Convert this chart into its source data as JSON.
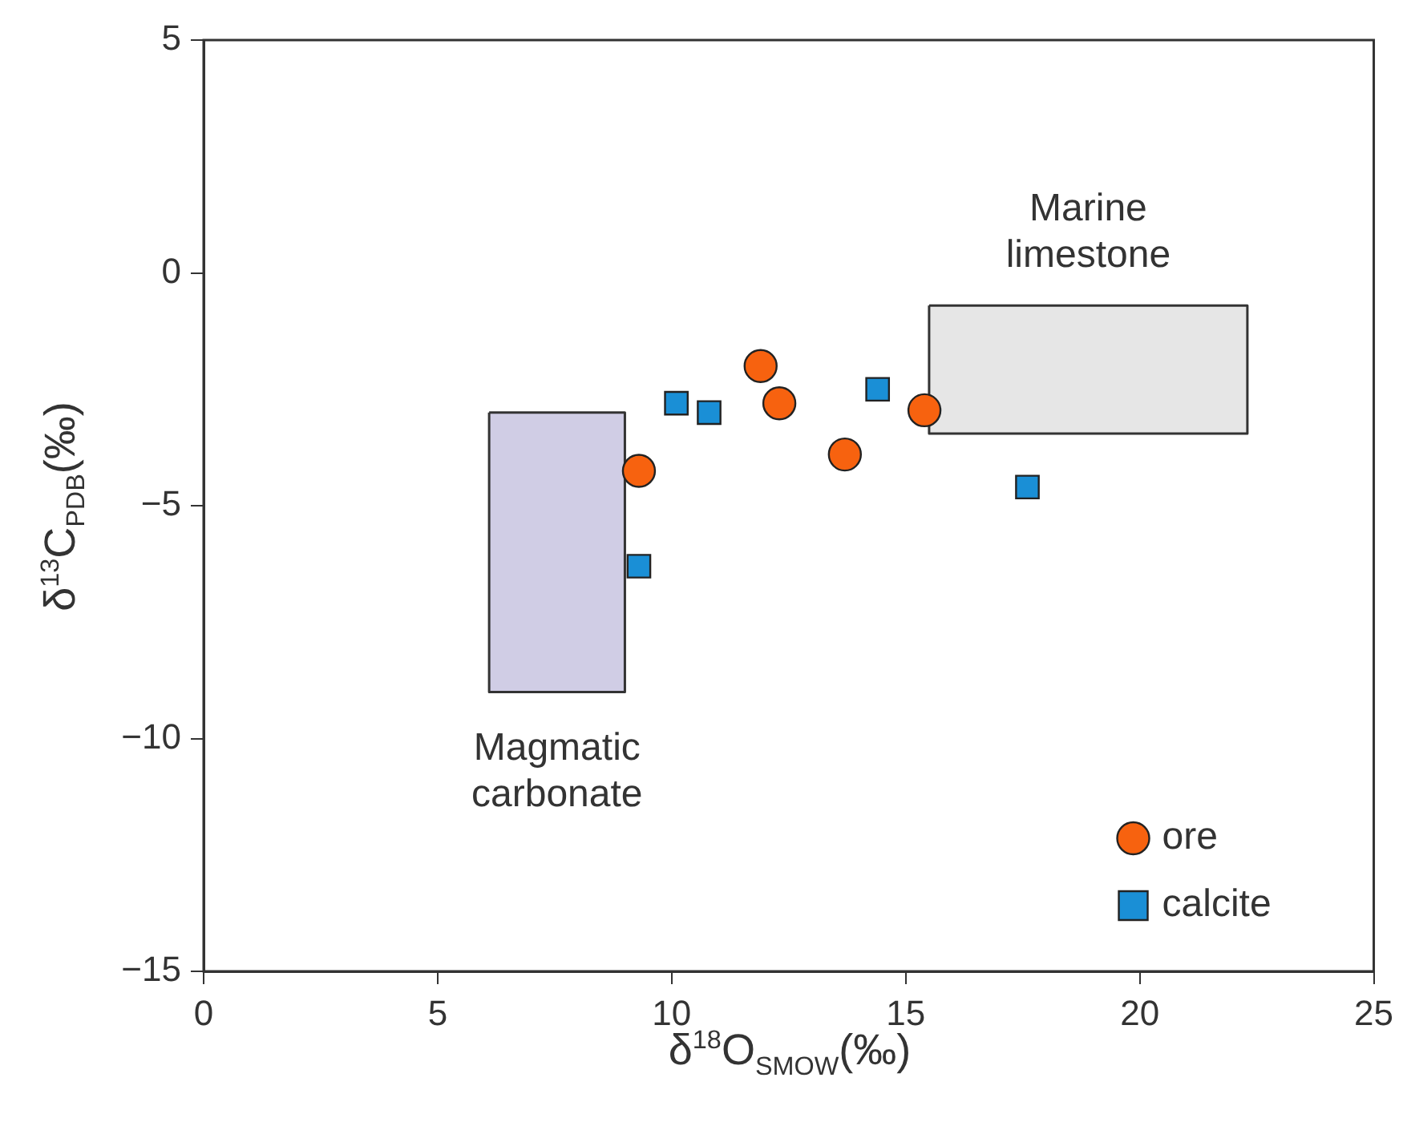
{
  "chart_data": {
    "type": "scatter",
    "xlabel": "δ$^{18}$O$_{SMOW}$(‰)",
    "ylabel": "δ$^{13}$C$_{PDB}$(‰)",
    "xlim": [
      0,
      25
    ],
    "xticks": [
      0,
      5,
      10,
      15,
      20,
      25
    ],
    "ylim": [
      -15,
      5
    ],
    "yticks": [
      -15,
      -10,
      -5,
      0,
      5
    ],
    "grid": false,
    "legend": "bottom right",
    "series": [
      {
        "type": "area",
        "color": "#d0cde5",
        "x": [
          6.1,
          9.0,
          9.0,
          6.1,
          6.1
        ],
        "values": [
          -3.0,
          -3.0,
          -9.0,
          -9.0,
          -3.0
        ]
      },
      {
        "type": "area",
        "color": "#e6e6e6",
        "x": [
          15.5,
          22.3,
          22.3,
          15.5,
          15.5
        ],
        "values": [
          -0.7,
          -0.7,
          -3.45,
          -3.45,
          -0.7
        ]
      },
      {
        "name": "ore",
        "type": "scatter",
        "marker": "circle",
        "color": "#f7620f",
        "x": [
          9.3,
          11.9,
          12.3,
          13.7,
          15.4
        ],
        "values": [
          -4.25,
          -2.0,
          -2.8,
          -3.9,
          -2.95
        ]
      },
      {
        "name": "calcite",
        "type": "scatter",
        "marker": "square",
        "color": "#1a8fd6",
        "x": [
          10.1,
          10.8,
          14.4,
          9.3,
          17.6
        ],
        "values": [
          -2.8,
          -3.0,
          -2.5,
          -6.3,
          -4.6
        ]
      }
    ],
    "annotations": [
      "Magmatic carbonate",
      "Marine limestone"
    ]
  }
}
